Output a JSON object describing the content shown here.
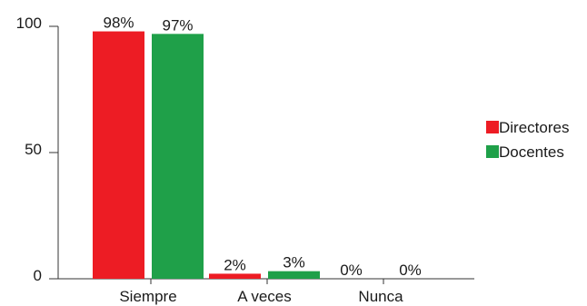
{
  "chart_data": {
    "type": "bar",
    "categories": [
      "Siempre",
      "A veces",
      "Nunca"
    ],
    "series": [
      {
        "name": "Directores",
        "values": [
          98,
          2,
          0
        ],
        "labels": [
          "98%",
          "2%",
          "0%"
        ],
        "color": "#ed1c24"
      },
      {
        "name": "Docentes",
        "values": [
          97,
          3,
          0
        ],
        "labels": [
          "97%",
          "3%",
          "0%"
        ],
        "color": "#1fa049"
      }
    ],
    "ylim": [
      0,
      100
    ],
    "yticks": [
      0,
      50,
      100
    ],
    "grid": false,
    "legend_position": "right"
  }
}
